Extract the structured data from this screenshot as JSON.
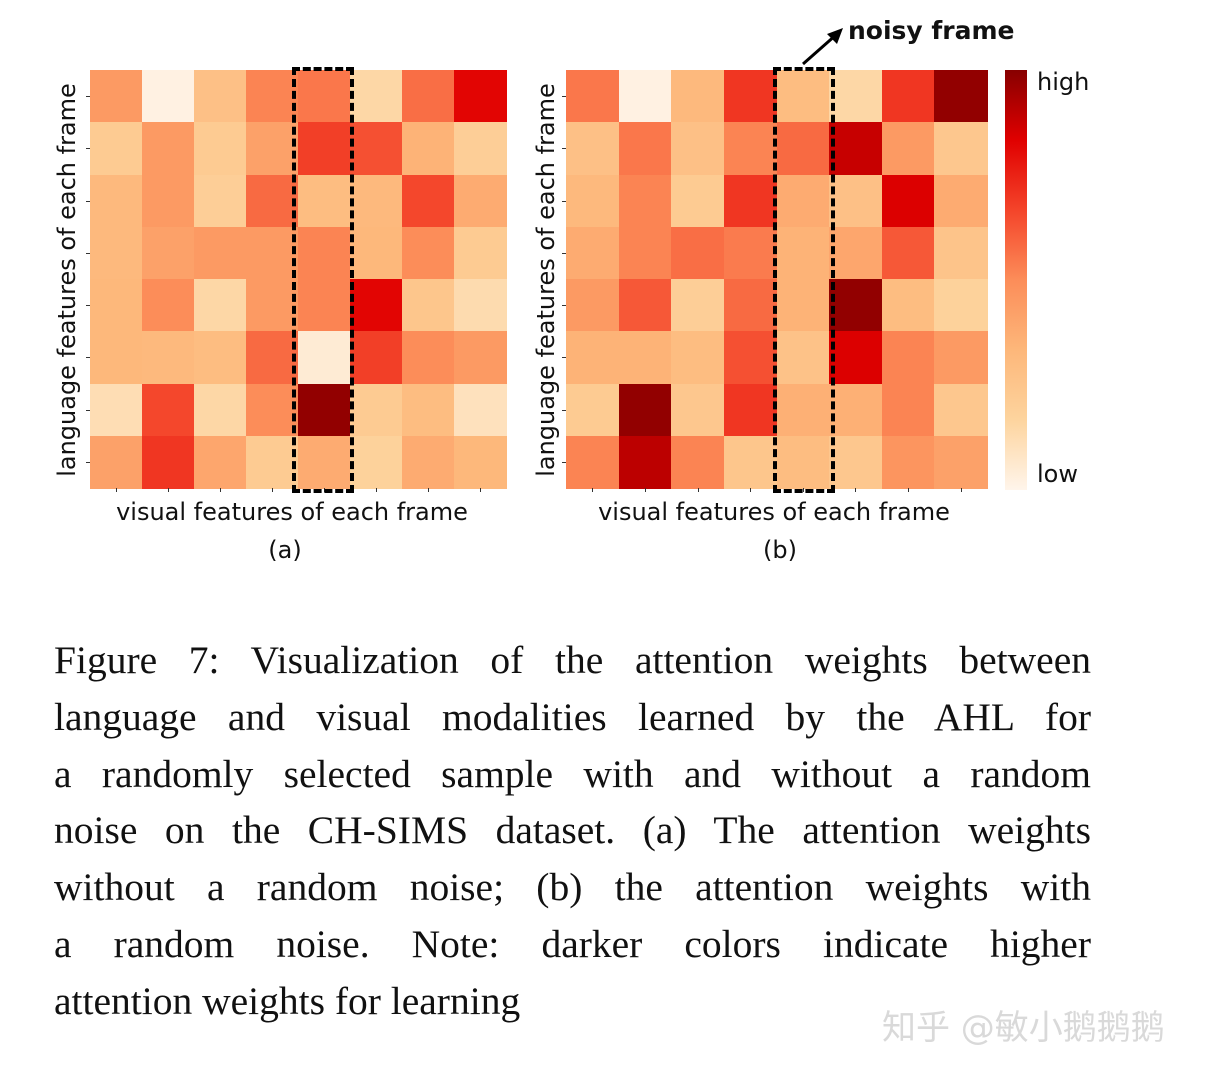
{
  "chart_data": [
    {
      "type": "heatmap",
      "panel_label": "(a)",
      "xlabel": "visual features of each frame",
      "ylabel": "language features of each frame",
      "rows": 8,
      "cols": 8,
      "highlighted_column": 5,
      "values": [
        [
          0.45,
          0.02,
          0.28,
          0.52,
          0.55,
          0.15,
          0.57,
          0.82
        ],
        [
          0.22,
          0.45,
          0.22,
          0.42,
          0.68,
          0.64,
          0.35,
          0.2
        ],
        [
          0.32,
          0.45,
          0.2,
          0.58,
          0.3,
          0.32,
          0.66,
          0.38
        ],
        [
          0.32,
          0.42,
          0.45,
          0.45,
          0.52,
          0.33,
          0.5,
          0.22
        ],
        [
          0.33,
          0.5,
          0.15,
          0.45,
          0.52,
          0.82,
          0.25,
          0.13
        ],
        [
          0.33,
          0.32,
          0.3,
          0.58,
          0.05,
          0.68,
          0.5,
          0.45
        ],
        [
          0.12,
          0.66,
          0.15,
          0.5,
          0.98,
          0.22,
          0.3,
          0.1
        ],
        [
          0.42,
          0.7,
          0.4,
          0.22,
          0.38,
          0.18,
          0.38,
          0.33
        ]
      ]
    },
    {
      "type": "heatmap",
      "panel_label": "(b)",
      "xlabel": "visual features of each frame",
      "ylabel": "language features of each frame",
      "rows": 8,
      "cols": 8,
      "highlighted_column": 5,
      "annotation": "noisy frame",
      "values": [
        [
          0.55,
          0.02,
          0.32,
          0.7,
          0.3,
          0.15,
          0.7,
          0.98
        ],
        [
          0.28,
          0.55,
          0.28,
          0.52,
          0.58,
          0.88,
          0.45,
          0.24
        ],
        [
          0.32,
          0.52,
          0.22,
          0.7,
          0.38,
          0.28,
          0.84,
          0.38
        ],
        [
          0.38,
          0.52,
          0.57,
          0.54,
          0.35,
          0.4,
          0.62,
          0.26
        ],
        [
          0.45,
          0.62,
          0.2,
          0.58,
          0.35,
          0.98,
          0.3,
          0.18
        ],
        [
          0.35,
          0.35,
          0.3,
          0.64,
          0.27,
          0.84,
          0.52,
          0.45
        ],
        [
          0.22,
          0.98,
          0.24,
          0.7,
          0.36,
          0.36,
          0.52,
          0.24
        ],
        [
          0.52,
          0.9,
          0.52,
          0.25,
          0.3,
          0.24,
          0.47,
          0.42
        ]
      ]
    }
  ],
  "colorbar": {
    "high_label": "high",
    "low_label": "low",
    "colors": [
      "#fff5eb",
      "#fdd49e",
      "#fdb77a",
      "#fc8d59",
      "#f4442a",
      "#e00000",
      "#870000"
    ]
  },
  "caption": {
    "lines": [
      "Figure 7: Visualization of the attention weights between",
      "language and visual modalities learned by the AHL for",
      "a randomly selected sample with and without a random",
      "noise on the CH-SIMS dataset. (a) The attention weights",
      "without a random noise; (b) the attention weights with",
      "a random noise.  Note: darker colors indicate higher",
      "attention weights for learning"
    ]
  },
  "watermark": "知乎 @敏小鹅鹅鹅"
}
